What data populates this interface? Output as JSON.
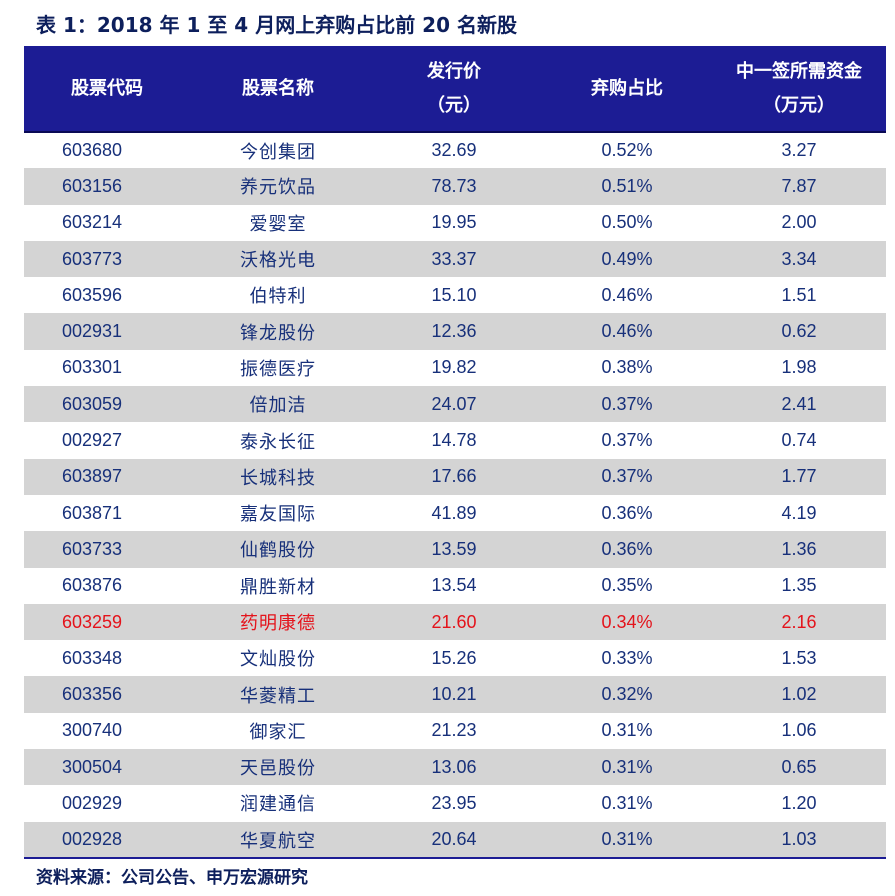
{
  "title": "表 1：2018 年 1 至 4 月网上弃购占比前 20 名新股",
  "headers": {
    "code": "股票代码",
    "name": "股票名称",
    "price_line1": "发行价",
    "price_line2": "（元）",
    "ratio": "弃购占比",
    "capital_line1": "中一签所需资金",
    "capital_line2": "（万元）"
  },
  "highlight_color": "#e4131b",
  "header_bg": "#1c1c94",
  "rows": [
    {
      "code": "603680",
      "name": "今创集团",
      "price": "32.69",
      "ratio": "0.52%",
      "capital": "3.27"
    },
    {
      "code": "603156",
      "name": "养元饮品",
      "price": "78.73",
      "ratio": "0.51%",
      "capital": "7.87"
    },
    {
      "code": "603214",
      "name": "爱婴室",
      "price": "19.95",
      "ratio": "0.50%",
      "capital": "2.00"
    },
    {
      "code": "603773",
      "name": "沃格光电",
      "price": "33.37",
      "ratio": "0.49%",
      "capital": "3.34"
    },
    {
      "code": "603596",
      "name": "伯特利",
      "price": "15.10",
      "ratio": "0.46%",
      "capital": "1.51"
    },
    {
      "code": "002931",
      "name": "锋龙股份",
      "price": "12.36",
      "ratio": "0.46%",
      "capital": "0.62"
    },
    {
      "code": "603301",
      "name": "振德医疗",
      "price": "19.82",
      "ratio": "0.38%",
      "capital": "1.98"
    },
    {
      "code": "603059",
      "name": "倍加洁",
      "price": "24.07",
      "ratio": "0.37%",
      "capital": "2.41"
    },
    {
      "code": "002927",
      "name": "泰永长征",
      "price": "14.78",
      "ratio": "0.37%",
      "capital": "0.74"
    },
    {
      "code": "603897",
      "name": "长城科技",
      "price": "17.66",
      "ratio": "0.37%",
      "capital": "1.77"
    },
    {
      "code": "603871",
      "name": "嘉友国际",
      "price": "41.89",
      "ratio": "0.36%",
      "capital": "4.19"
    },
    {
      "code": "603733",
      "name": "仙鹤股份",
      "price": "13.59",
      "ratio": "0.36%",
      "capital": "1.36"
    },
    {
      "code": "603876",
      "name": "鼎胜新材",
      "price": "13.54",
      "ratio": "0.35%",
      "capital": "1.35"
    },
    {
      "code": "603259",
      "name": "药明康德",
      "price": "21.60",
      "ratio": "0.34%",
      "capital": "2.16",
      "highlight": true
    },
    {
      "code": "603348",
      "name": "文灿股份",
      "price": "15.26",
      "ratio": "0.33%",
      "capital": "1.53"
    },
    {
      "code": "603356",
      "name": "华菱精工",
      "price": "10.21",
      "ratio": "0.32%",
      "capital": "1.02"
    },
    {
      "code": "300740",
      "name": "御家汇",
      "price": "21.23",
      "ratio": "0.31%",
      "capital": "1.06"
    },
    {
      "code": "300504",
      "name": "天邑股份",
      "price": "13.06",
      "ratio": "0.31%",
      "capital": "0.65"
    },
    {
      "code": "002929",
      "name": "润建通信",
      "price": "23.95",
      "ratio": "0.31%",
      "capital": "1.20"
    },
    {
      "code": "002928",
      "name": "华夏航空",
      "price": "20.64",
      "ratio": "0.31%",
      "capital": "1.03"
    }
  ],
  "source": "资料来源：公司公告、申万宏源研究"
}
